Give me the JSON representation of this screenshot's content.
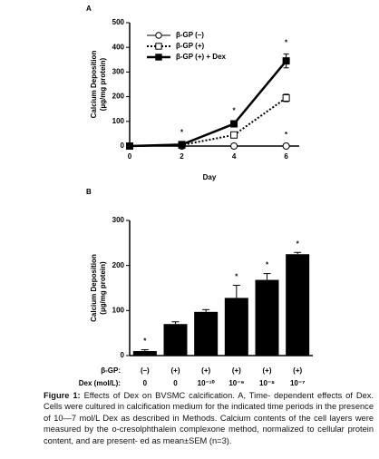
{
  "chart_data": [
    {
      "type": "line",
      "panel": "A",
      "xlabel": "Day",
      "ylabel": [
        "Calcium Deposition",
        "(µg/mg protein)"
      ],
      "xlim": [
        0,
        6.5
      ],
      "xticks": [
        0,
        2,
        4,
        6
      ],
      "ylim": [
        0,
        500
      ],
      "yticks": [
        0,
        100,
        200,
        300,
        400,
        500
      ],
      "legend": "upper left",
      "significance_mark": "*",
      "series": [
        {
          "name": "β-GP (–)",
          "color": "#000000",
          "marker": "circle-open",
          "dash": "solid",
          "width": 1,
          "x": [
            0,
            2,
            4,
            6
          ],
          "values": [
            0,
            0,
            0,
            0
          ],
          "errors": [
            0,
            0,
            0,
            0
          ],
          "significant": [
            false,
            false,
            false,
            true
          ]
        },
        {
          "name": "β-GP (+)",
          "color": "#000000",
          "marker": "square-open",
          "dash": "dotted",
          "width": 2,
          "x": [
            0,
            2,
            4,
            6
          ],
          "values": [
            0,
            4,
            45,
            195
          ],
          "errors": [
            0,
            2,
            5,
            15
          ],
          "significant": [
            false,
            false,
            false,
            false
          ]
        },
        {
          "name": "β-GP (+) + Dex",
          "color": "#000000",
          "marker": "square-filled",
          "dash": "solid",
          "width": 2.5,
          "x": [
            0,
            2,
            4,
            6
          ],
          "values": [
            0,
            6,
            90,
            345
          ],
          "errors": [
            0,
            3,
            8,
            28
          ],
          "significant": [
            false,
            true,
            true,
            true
          ]
        }
      ]
    },
    {
      "type": "bar",
      "panel": "B",
      "ylabel": [
        "Calcium Deposition",
        "(µg/mg protein)"
      ],
      "ylim": [
        0,
        300
      ],
      "yticks": [
        0,
        100,
        200,
        300
      ],
      "significance_mark": "*",
      "color": "#000000",
      "row_labels": [
        "β-GP:",
        "Dex (mol/L):"
      ],
      "bgp": [
        "(–)",
        "(+)",
        "(+)",
        "(+)",
        "(+)",
        "(+)"
      ],
      "categories": [
        "0",
        "0",
        "10⁻¹⁰",
        "10⁻⁹",
        "10⁻⁸",
        "10⁻⁷"
      ],
      "values": [
        10,
        70,
        97,
        128,
        168,
        225
      ],
      "errors": [
        3,
        5,
        5,
        28,
        14,
        4
      ],
      "significant": [
        true,
        false,
        false,
        true,
        true,
        true
      ]
    }
  ],
  "caption": {
    "label": "Figure 1:",
    "text": "Effects of Dex on BVSMC calcification. A, Time- dependent effects of Dex. Cells were cultured in calcification medium for the indicated time periods in the presence of 10—7 mol/L Dex as described in Methods. Calcium contents of the cell layers were measured by the o-cresolphthalein complexone method, normalized to cellular protein content, and are present- ed as mean±SEM (n=3)."
  }
}
